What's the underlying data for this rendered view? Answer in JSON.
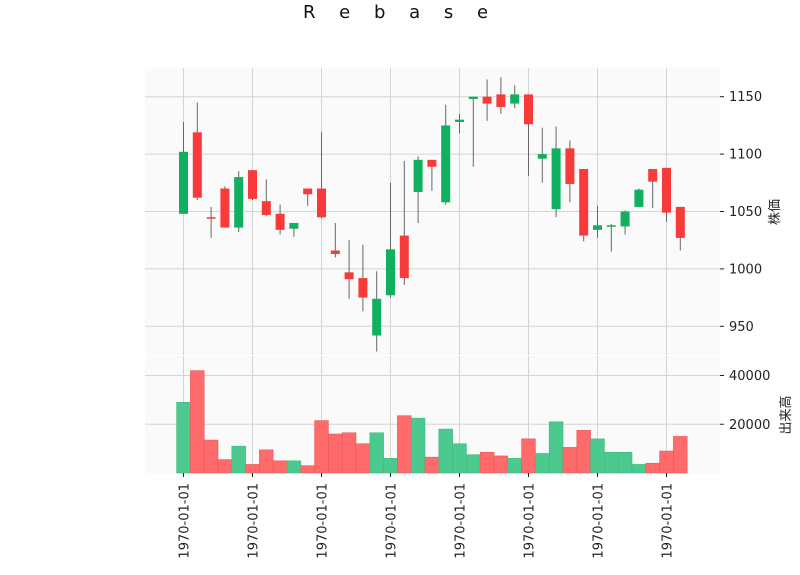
{
  "title": "R e b a s e",
  "chart_data": [
    {
      "type": "candlestick",
      "ylabel": "株価",
      "ylim": [
        925,
        1175
      ],
      "yticks": [
        "950",
        "1000",
        "1050",
        "1100",
        "1150"
      ],
      "ytick_values": [
        950,
        1000,
        1050,
        1100,
        1150
      ],
      "grid": true,
      "up_color": "#10b060",
      "down_color": "#f73b3b",
      "candles": [
        {
          "open": 1048,
          "high": 1128,
          "low": 1048,
          "close": 1102
        },
        {
          "open": 1119,
          "high": 1145,
          "low": 1060,
          "close": 1062
        },
        {
          "open": 1045,
          "high": 1054,
          "low": 1027,
          "close": 1044
        },
        {
          "open": 1070,
          "high": 1072,
          "low": 1036,
          "close": 1036
        },
        {
          "open": 1036,
          "high": 1085,
          "low": 1032,
          "close": 1080
        },
        {
          "open": 1086,
          "high": 1086,
          "low": 1060,
          "close": 1061
        },
        {
          "open": 1059,
          "high": 1078,
          "low": 1046,
          "close": 1047
        },
        {
          "open": 1048,
          "high": 1056,
          "low": 1030,
          "close": 1034
        },
        {
          "open": 1035,
          "high": 1040,
          "low": 1028,
          "close": 1040
        },
        {
          "open": 1070,
          "high": 1070,
          "low": 1055,
          "close": 1065
        },
        {
          "open": 1070,
          "high": 1119,
          "low": 1044,
          "close": 1045
        },
        {
          "open": 1016,
          "high": 1040,
          "low": 1010,
          "close": 1013
        },
        {
          "open": 997,
          "high": 1025,
          "low": 974,
          "close": 991
        },
        {
          "open": 992,
          "high": 1021,
          "low": 963,
          "close": 975
        },
        {
          "open": 942,
          "high": 998,
          "low": 928,
          "close": 974
        },
        {
          "open": 977,
          "high": 1075,
          "low": 975,
          "close": 1017
        },
        {
          "open": 1029,
          "high": 1094,
          "low": 986,
          "close": 992
        },
        {
          "open": 1067,
          "high": 1098,
          "low": 1040,
          "close": 1095
        },
        {
          "open": 1095,
          "high": 1095,
          "low": 1068,
          "close": 1089
        },
        {
          "open": 1058,
          "high": 1143,
          "low": 1056,
          "close": 1125
        },
        {
          "open": 1128,
          "high": 1135,
          "low": 1118,
          "close": 1130
        },
        {
          "open": 1148,
          "high": 1150,
          "low": 1089,
          "close": 1150
        },
        {
          "open": 1150,
          "high": 1165,
          "low": 1129,
          "close": 1144
        },
        {
          "open": 1152,
          "high": 1167,
          "low": 1135,
          "close": 1141
        },
        {
          "open": 1144,
          "high": 1160,
          "low": 1140,
          "close": 1152
        },
        {
          "open": 1152,
          "high": 1152,
          "low": 1081,
          "close": 1126
        },
        {
          "open": 1096,
          "high": 1123,
          "low": 1075,
          "close": 1100
        },
        {
          "open": 1052,
          "high": 1124,
          "low": 1045,
          "close": 1105
        },
        {
          "open": 1105,
          "high": 1112,
          "low": 1058,
          "close": 1074
        },
        {
          "open": 1087,
          "high": 1087,
          "low": 1024,
          "close": 1029
        },
        {
          "open": 1034,
          "high": 1055,
          "low": 1027,
          "close": 1038
        },
        {
          "open": 1038,
          "high": 1039,
          "low": 1015,
          "close": 1038
        },
        {
          "open": 1037,
          "high": 1051,
          "low": 1030,
          "close": 1050
        },
        {
          "open": 1054,
          "high": 1070,
          "low": 1054,
          "close": 1069
        },
        {
          "open": 1087,
          "high": 1087,
          "low": 1053,
          "close": 1076
        },
        {
          "open": 1088,
          "high": 1088,
          "low": 1041,
          "close": 1049
        },
        {
          "open": 1054,
          "high": 1054,
          "low": 1016,
          "close": 1027
        }
      ]
    },
    {
      "type": "bar",
      "ylabel": "出来高",
      "ylim": [
        0,
        48000
      ],
      "yticks": [
        "20000",
        "40000"
      ],
      "ytick_values": [
        20000,
        40000
      ],
      "volumes": [
        29000,
        42000,
        13500,
        5500,
        11000,
        3500,
        9500,
        5000,
        5000,
        3000,
        21500,
        16000,
        16500,
        12000,
        16500,
        6000,
        23500,
        22500,
        6500,
        18000,
        12000,
        7500,
        8500,
        7000,
        6000,
        14000,
        8000,
        21000,
        10500,
        17500,
        14000,
        8500,
        8500,
        3500,
        4000,
        9000,
        15000
      ],
      "xticks": [
        "1970-01-01",
        "1970-01-01",
        "1970-01-01",
        "1970-01-01",
        "1970-01-01",
        "1970-01-01",
        "1970-01-01",
        "1970-01-01"
      ],
      "xtick_indices": [
        0,
        5,
        10,
        15,
        20,
        25,
        30,
        35
      ]
    }
  ]
}
